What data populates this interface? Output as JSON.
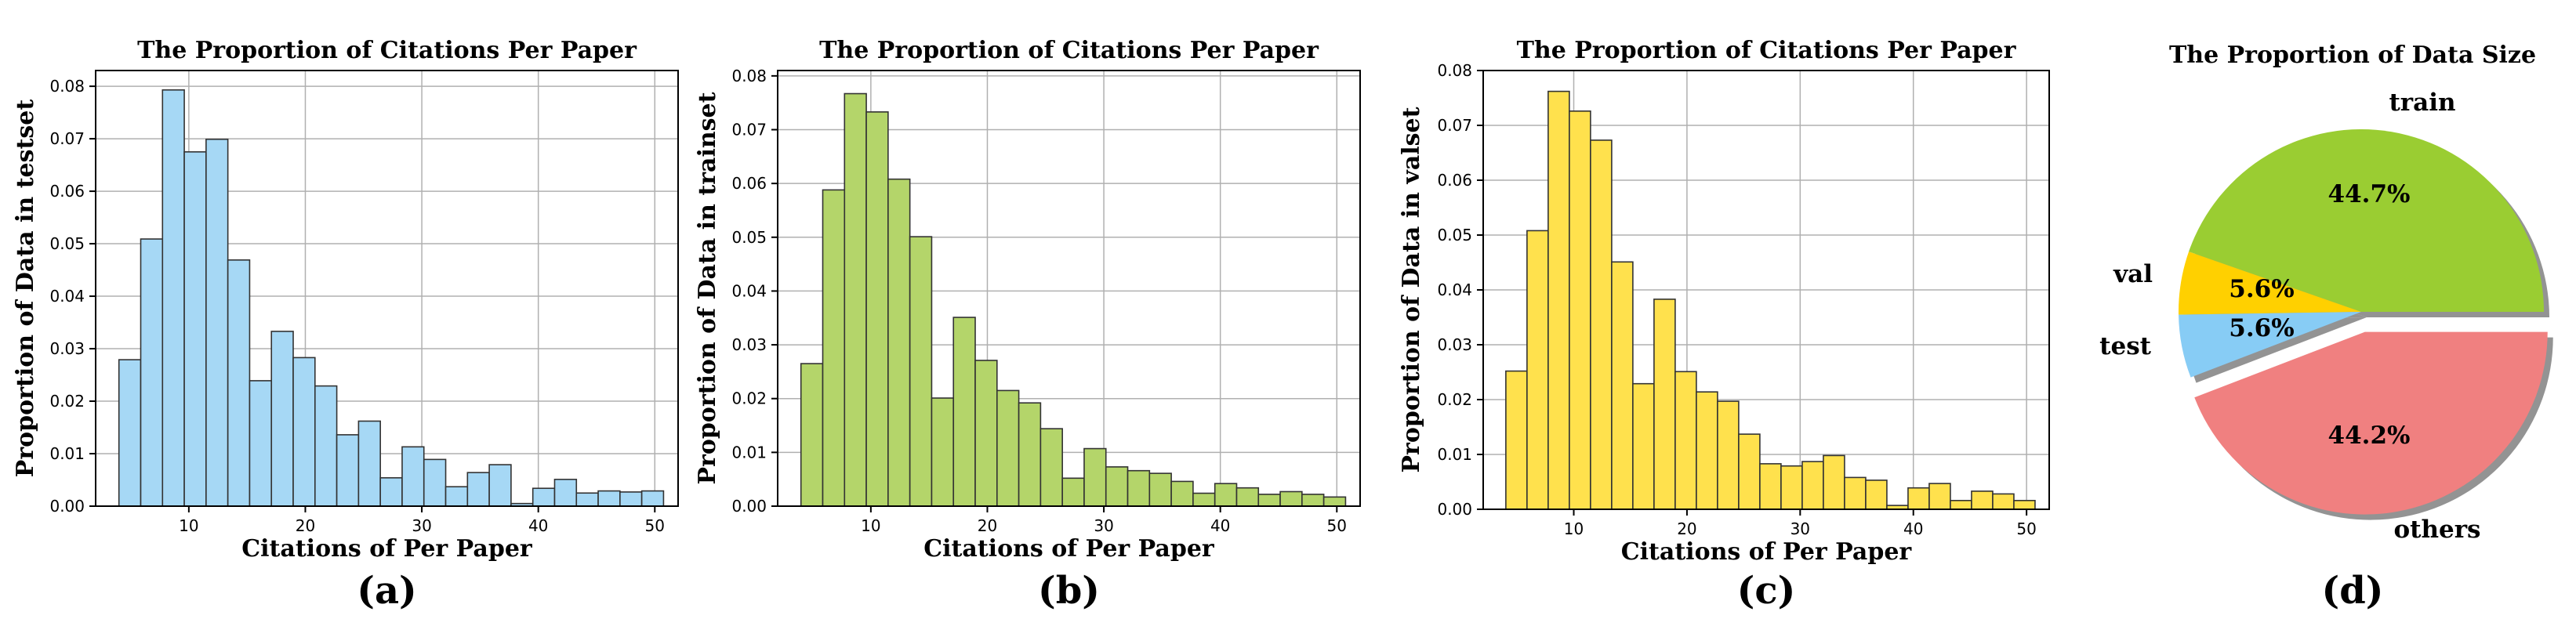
{
  "chart_data": [
    {
      "type": "bar",
      "title": "The Proportion of Citations Per Paper",
      "xlabel": "Citations of Per Paper",
      "ylabel": "Proportion of Data in testset",
      "panel_label": "(a)",
      "color": "#a6d8f5",
      "edge_color": "#333333",
      "xlim": [
        2,
        52
      ],
      "ylim": [
        0,
        0.083
      ],
      "bin_start": 4,
      "bin_width": 1.87,
      "values": [
        0.0279,
        0.0509,
        0.0793,
        0.0675,
        0.0699,
        0.0469,
        0.0239,
        0.0333,
        0.0283,
        0.0229,
        0.0136,
        0.0162,
        0.0054,
        0.0113,
        0.0089,
        0.0037,
        0.0064,
        0.0079,
        0.0005,
        0.0034,
        0.0051,
        0.0025,
        0.0029,
        0.0027,
        0.0029
      ],
      "xticks": [
        10,
        20,
        30,
        40,
        50
      ],
      "yticks": [
        0.0,
        0.01,
        0.02,
        0.03,
        0.04,
        0.05,
        0.06,
        0.07,
        0.08
      ],
      "ytick_labels": [
        "0.00",
        "0.01",
        "0.02",
        "0.03",
        "0.04",
        "0.05",
        "0.06",
        "0.07",
        "0.08"
      ],
      "grid": true
    },
    {
      "type": "bar",
      "title": "The Proportion of Citations Per Paper",
      "xlabel": "Citations of Per Paper",
      "ylabel": "Proportion of Data in trainset",
      "panel_label": "(b)",
      "color": "#b4d56a",
      "edge_color": "#333333",
      "xlim": [
        2,
        52
      ],
      "ylim": [
        0,
        0.081
      ],
      "bin_start": 4,
      "bin_width": 1.87,
      "values": [
        0.0265,
        0.0588,
        0.0767,
        0.0733,
        0.0608,
        0.0501,
        0.0201,
        0.0351,
        0.0271,
        0.0215,
        0.0192,
        0.0144,
        0.0052,
        0.0107,
        0.0073,
        0.0066,
        0.0061,
        0.0046,
        0.0024,
        0.0042,
        0.0034,
        0.0022,
        0.0027,
        0.0022,
        0.0017
      ],
      "xticks": [
        10,
        20,
        30,
        40,
        50
      ],
      "yticks": [
        0.0,
        0.01,
        0.02,
        0.03,
        0.04,
        0.05,
        0.06,
        0.07,
        0.08
      ],
      "ytick_labels": [
        "0.00",
        "0.01",
        "0.02",
        "0.03",
        "0.04",
        "0.05",
        "0.06",
        "0.07",
        "0.08"
      ],
      "grid": true
    },
    {
      "type": "bar",
      "title": "The Proportion of Citations Per Paper",
      "xlabel": "Citations of Per Paper",
      "ylabel": "Proportion of Data in valset",
      "panel_label": "(c)",
      "color": "#ffe14d",
      "edge_color": "#333333",
      "xlim": [
        2,
        52
      ],
      "ylim": [
        0,
        0.08
      ],
      "bin_start": 4,
      "bin_width": 1.87,
      "values": [
        0.0252,
        0.0508,
        0.0762,
        0.0726,
        0.0673,
        0.0451,
        0.0229,
        0.0383,
        0.0251,
        0.0214,
        0.0197,
        0.0137,
        0.0083,
        0.0079,
        0.0087,
        0.0098,
        0.0058,
        0.0053,
        0.0007,
        0.0039,
        0.0047,
        0.0016,
        0.0033,
        0.0028,
        0.0016
      ],
      "xticks": [
        10,
        20,
        30,
        40,
        50
      ],
      "yticks": [
        0.0,
        0.01,
        0.02,
        0.03,
        0.04,
        0.05,
        0.06,
        0.07,
        0.08
      ],
      "ytick_labels": [
        "0.00",
        "0.01",
        "0.02",
        "0.03",
        "0.04",
        "0.05",
        "0.06",
        "0.07",
        "0.08"
      ],
      "grid": true
    },
    {
      "type": "pie",
      "title": "The Proportion of Data Size",
      "panel_label": "(d)",
      "slices": [
        {
          "label": "train",
          "value": 44.7,
          "pct_label": "44.7%",
          "color": "#9acd32",
          "explode": 0
        },
        {
          "label": "val",
          "value": 5.6,
          "pct_label": "5.6%",
          "color": "#ffd000",
          "explode": 0
        },
        {
          "label": "test",
          "value": 5.6,
          "pct_label": "5.6%",
          "color": "#87ccf5",
          "explode": 0
        },
        {
          "label": "others",
          "value": 44.2,
          "pct_label": "44.2%",
          "color": "#f08080",
          "explode": 1
        }
      ],
      "start_angle": 0,
      "shadow": true
    }
  ]
}
